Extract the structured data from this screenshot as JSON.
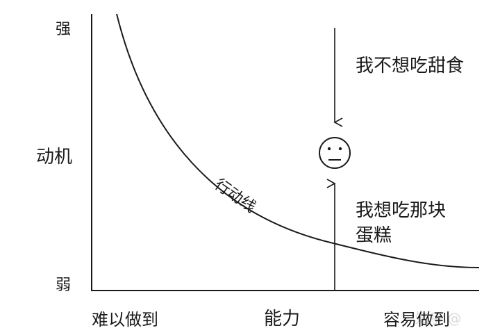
{
  "y_axis": {
    "label": "动机",
    "top": "强",
    "bottom": "弱"
  },
  "x_axis": {
    "label": "能力",
    "left": "难以做到",
    "right": "容易做到"
  },
  "curve_label": "行动线",
  "top_annotation": "我不想吃甜食",
  "bottom_annotation_line1": "我想吃那块",
  "bottom_annotation_line2": "蛋糕",
  "watermark": "知乎 @",
  "colors": {
    "ink": "#1a1a1a",
    "background": "#ffffff"
  },
  "icons": {
    "face": "neutral-face-icon"
  }
}
